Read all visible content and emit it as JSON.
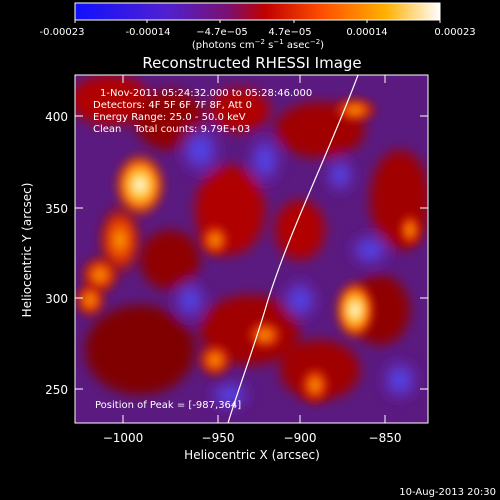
{
  "colorbar": {
    "ticks": [
      "-0.00023",
      "-0.00014",
      "−4.7e−05",
      "4.7e−05",
      "0.00014",
      "0.00023"
    ],
    "units_prefix": "(photons cm",
    "units_exp1": "−2",
    "units_mid": " s",
    "units_exp2": "−1",
    "units_mid2": " asec",
    "units_exp3": "−2",
    "units_suffix": ")"
  },
  "title": "Reconstructed RHESSI Image",
  "info": {
    "time_range": "1-Nov-2011 05:24:32.000 to 05:28:46.000",
    "detectors": "Detectors: 4F 5F 6F 7F 8F, Att 0",
    "energy": "Energy Range: 25.0 - 50.0 keV",
    "clean": "Clean    Total counts: 9.79E+03",
    "peak": "Position of Peak = [-987,364]"
  },
  "axes": {
    "xlabel": "Heliocentric X (arcsec)",
    "ylabel": "Heliocentric Y (arcsec)",
    "xticks": [
      "−1000",
      "−950",
      "−900",
      "−850"
    ],
    "yticks": [
      "400",
      "350",
      "300",
      "250"
    ]
  },
  "footer_timestamp": "10-Aug-2013 20:30",
  "colors": {
    "background": "#000000",
    "colorbar_stops": [
      "#1010ff",
      "#6a10c0",
      "#a01060",
      "#d81000",
      "#ff8000",
      "#ffe060",
      "#ffffff"
    ]
  }
}
